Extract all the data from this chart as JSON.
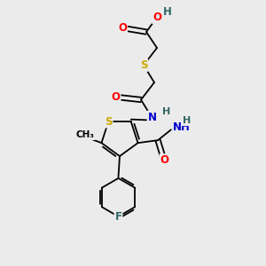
{
  "bg_color": "#ebebeb",
  "atom_colors": {
    "O": "#ff0000",
    "N": "#0000cc",
    "S": "#ccaa00",
    "F": "#336666",
    "H": "#336666",
    "C": "#000000"
  },
  "bond_color": "#000000",
  "fs": 8.5
}
